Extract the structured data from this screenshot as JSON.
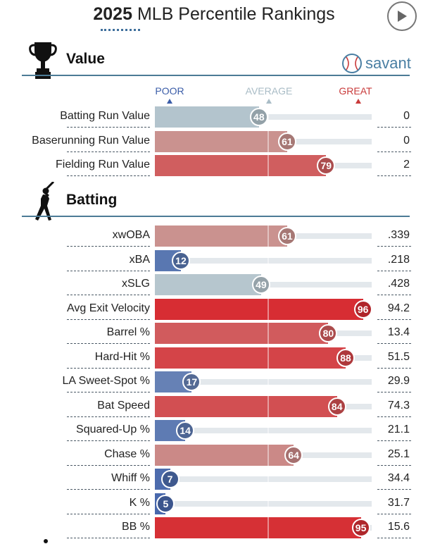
{
  "header": {
    "year": "2025",
    "title": "MLB Percentile Rankings"
  },
  "controls": {
    "play_icon": "play-icon"
  },
  "brand": {
    "label": "savant",
    "icon": "baseball-icon",
    "color": "#4a7fa3"
  },
  "scale": {
    "poor": "POOR",
    "average": "AVERAGE",
    "great": "GREAT",
    "poor_color": "#3b5da8",
    "average_color": "#a9bcc6",
    "great_color": "#c93b3b"
  },
  "sections": {
    "value": {
      "title": "Value",
      "icon": "trophy-icon",
      "metrics": [
        {
          "name": "Batting Run Value",
          "percentile": 48,
          "value": "0"
        },
        {
          "name": "Baserunning Run Value",
          "percentile": 61,
          "value": "0"
        },
        {
          "name": "Fielding Run Value",
          "percentile": 79,
          "value": "2"
        }
      ]
    },
    "batting": {
      "title": "Batting",
      "icon": "batter-icon",
      "metrics": [
        {
          "name": "xwOBA",
          "percentile": 61,
          "value": ".339"
        },
        {
          "name": "xBA",
          "percentile": 12,
          "value": ".218"
        },
        {
          "name": "xSLG",
          "percentile": 49,
          "value": ".428"
        },
        {
          "name": "Avg Exit Velocity",
          "percentile": 96,
          "value": "94.2"
        },
        {
          "name": "Barrel %",
          "percentile": 80,
          "value": "13.4"
        },
        {
          "name": "Hard-Hit %",
          "percentile": 88,
          "value": "51.5"
        },
        {
          "name": "LA Sweet-Spot %",
          "percentile": 17,
          "value": "29.9"
        },
        {
          "name": "Bat Speed",
          "percentile": 84,
          "value": "74.3"
        },
        {
          "name": "Squared-Up %",
          "percentile": 14,
          "value": "21.1"
        },
        {
          "name": "Chase %",
          "percentile": 64,
          "value": "25.1"
        },
        {
          "name": "Whiff %",
          "percentile": 7,
          "value": "34.4"
        },
        {
          "name": "K %",
          "percentile": 5,
          "value": "31.7"
        },
        {
          "name": "BB %",
          "percentile": 95,
          "value": "15.6"
        }
      ]
    }
  }
}
